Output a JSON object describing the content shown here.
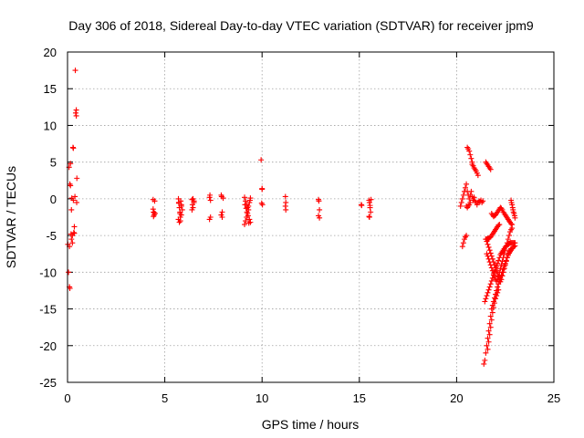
{
  "chart_data": {
    "type": "scatter",
    "title": "Day 306 of 2018, Sidereal Day-to-day VTEC variation (SDTVAR) for receiver jpm9",
    "xlabel": "GPS time / hours",
    "ylabel": "SDTVAR / TECUs",
    "xlim": [
      0,
      25
    ],
    "ylim": [
      -25,
      20
    ],
    "xticks": [
      0,
      5,
      10,
      15,
      20,
      25
    ],
    "yticks": [
      -25,
      -20,
      -15,
      -10,
      -5,
      0,
      5,
      10,
      15,
      20
    ],
    "grid": true,
    "marker": "+",
    "color": "#ff0000",
    "series": [
      {
        "name": "SDTVAR",
        "x": [
          0.02,
          0.05,
          0.08,
          0.1,
          0.12,
          0.15,
          0.18,
          0.2,
          0.22,
          0.25,
          0.28,
          0.3,
          0.32,
          0.35,
          0.38,
          0.4,
          0.42,
          0.45,
          0.45,
          0.47,
          0.48,
          0.1,
          0.12,
          0.15,
          0.2,
          0.25,
          0.3,
          0.35,
          4.4,
          4.42,
          4.45,
          4.48,
          4.4,
          4.45,
          4.5,
          4.42,
          5.7,
          5.72,
          5.75,
          5.78,
          5.8,
          5.82,
          5.85,
          5.9,
          5.7,
          5.75,
          5.8,
          5.85,
          5.72,
          5.78,
          5.85,
          6.4,
          6.42,
          6.45,
          6.5,
          6.4,
          6.45,
          6.5,
          7.3,
          7.32,
          7.35,
          7.3,
          7.35,
          7.9,
          7.92,
          7.95,
          7.9,
          7.95,
          8.0,
          9.1,
          9.15,
          9.2,
          9.25,
          9.3,
          9.35,
          9.4,
          9.1,
          9.15,
          9.2,
          9.25,
          9.3,
          9.35,
          9.4,
          9.12,
          9.18,
          9.22,
          9.28,
          9.32,
          9.38,
          9.95,
          10.0,
          10.0,
          9.98,
          10.02,
          11.2,
          11.22,
          11.2,
          11.22,
          12.9,
          12.92,
          12.95,
          12.9,
          12.95,
          15.1,
          15.12,
          15.5,
          15.52,
          15.55,
          15.58,
          15.5,
          15.55,
          15.6,
          15.52,
          20.2,
          20.25,
          20.3,
          20.35,
          20.4,
          20.45,
          20.5,
          20.55,
          20.6,
          20.65,
          20.7,
          20.75,
          20.8,
          20.85,
          20.9,
          20.95,
          21.0,
          21.05,
          21.1,
          21.15,
          21.2,
          21.25,
          21.3,
          21.35,
          20.3,
          20.35,
          20.4,
          20.45,
          20.5,
          20.55,
          20.6,
          20.65,
          20.7,
          20.75,
          20.8,
          20.5,
          20.55,
          20.6,
          20.65,
          20.7,
          20.8,
          20.85,
          20.9,
          20.95,
          21.0,
          21.05,
          21.1,
          21.5,
          21.55,
          21.6,
          21.65,
          21.7,
          21.75,
          21.8,
          21.85,
          21.9,
          21.95,
          22.0,
          22.05,
          22.1,
          22.15,
          22.2,
          22.25,
          22.3,
          22.35,
          22.4,
          22.45,
          22.5,
          22.55,
          22.6,
          22.65,
          22.7,
          22.75,
          22.8,
          22.85,
          21.55,
          21.6,
          21.65,
          21.7,
          21.75,
          21.8,
          21.85,
          21.9,
          21.95,
          22.0,
          22.05,
          22.1,
          22.15,
          22.2,
          22.25,
          22.3,
          22.35,
          22.4,
          22.45,
          22.5,
          22.55,
          22.6,
          22.65,
          22.7,
          22.75,
          22.8,
          22.85,
          21.5,
          21.55,
          21.6,
          21.65,
          21.7,
          21.75,
          21.8,
          21.85,
          21.9,
          21.95,
          22.0,
          22.05,
          22.1,
          22.15,
          22.2,
          22.25,
          22.3,
          22.35,
          22.4,
          22.45,
          22.5,
          22.55,
          22.6,
          22.65,
          22.7,
          22.75,
          22.8,
          21.45,
          21.5,
          21.55,
          21.6,
          21.65,
          21.7,
          21.75,
          21.8,
          21.85,
          21.9,
          21.95,
          22.0,
          22.05,
          22.1,
          22.15,
          22.2,
          22.25,
          22.3,
          22.35,
          22.4,
          22.45,
          22.5,
          22.55,
          22.6,
          22.65,
          22.7,
          22.75,
          22.8,
          22.85,
          22.9,
          22.95,
          23.0,
          21.5,
          21.55,
          21.6,
          21.65,
          21.7,
          21.75,
          21.8,
          21.85,
          21.9,
          21.95,
          22.0,
          22.05,
          22.1,
          22.15,
          22.2,
          21.4,
          21.45,
          21.5,
          21.55,
          21.6,
          21.65,
          21.7,
          21.75,
          21.8,
          21.85,
          21.9,
          21.95,
          22.0,
          22.05,
          22.1,
          22.15,
          22.2,
          22.25,
          22.3,
          22.35,
          22.4,
          22.45,
          22.5,
          22.55,
          22.6,
          22.65,
          22.7,
          22.75,
          22.8,
          22.85,
          22.9,
          22.95,
          23.0,
          21.6,
          21.65,
          21.7,
          21.75,
          21.8,
          21.85,
          21.9,
          21.95,
          22.0,
          22.05,
          22.1,
          22.15,
          22.8,
          22.85,
          22.9,
          22.95,
          23.0,
          22.82,
          22.88,
          22.92,
          22.98
        ],
        "y": [
          -6.2,
          -10.0,
          4.3,
          -12.0,
          -12.2,
          1.8,
          -4.8,
          -5.5,
          0.1,
          -6.0,
          7.0,
          6.9,
          -4.6,
          -3.8,
          0.3,
          17.5,
          11.7,
          11.3,
          12.1,
          -0.5,
          2.8,
          -6.5,
          2.0,
          4.8,
          -1.5,
          -5.0,
          -0.2,
          -4.7,
          -0.1,
          -1.8,
          -2.2,
          -0.3,
          -1.4,
          -1.9,
          -2.0,
          -2.4,
          0.0,
          -0.5,
          -1.2,
          -2.0,
          -3.0,
          -0.3,
          -0.8,
          -1.5,
          -2.8,
          -3.2,
          -2.5,
          -1.0,
          -0.6,
          -1.8,
          -2.2,
          -0.1,
          -0.8,
          -1.2,
          -0.3,
          -1.5,
          0.0,
          -0.5,
          0.2,
          0.5,
          -0.2,
          -2.8,
          -2.5,
          0.5,
          0.3,
          -1.8,
          -2.2,
          -2.5,
          0.1,
          0.2,
          -0.3,
          -0.8,
          -1.2,
          -1.5,
          -2.8,
          -3.2,
          -3.5,
          -3.0,
          -2.5,
          -2.0,
          -1.0,
          -0.5,
          0.1,
          -0.8,
          -1.3,
          -1.8,
          -2.3,
          -3.3,
          -0.2,
          5.3,
          1.3,
          1.4,
          -0.6,
          -0.8,
          0.3,
          -0.5,
          -1.0,
          -1.5,
          -0.1,
          -0.3,
          -1.5,
          -2.3,
          -2.6,
          -0.8,
          -0.9,
          -0.2,
          -0.5,
          -1.2,
          -1.8,
          -2.4,
          -0.9,
          -0.1,
          -2.5,
          -1.0,
          -0.5,
          0.0,
          0.5,
          1.0,
          1.5,
          2.0,
          1.0,
          0.5,
          0.0,
          0.5,
          1.0,
          0.3,
          -0.2,
          0.2,
          -0.3,
          -0.5,
          -0.8,
          -0.5,
          -0.3,
          -0.4,
          -0.2,
          -0.5,
          -0.3,
          -6.5,
          -6.0,
          -5.5,
          -5.2,
          -5.0,
          7.0,
          6.8,
          6.5,
          6.0,
          5.5,
          5.0,
          -1.0,
          -1.2,
          -1.0,
          -0.8,
          -0.5,
          4.7,
          4.5,
          4.2,
          4.0,
          3.8,
          3.5,
          3.2,
          5.0,
          4.8,
          4.6,
          4.4,
          4.2,
          4.0,
          -2.0,
          -2.2,
          -2.4,
          -2.3,
          -2.2,
          -2.0,
          -1.8,
          -1.6,
          -1.4,
          -1.2,
          -1.3,
          -1.5,
          -1.8,
          -2.0,
          -2.2,
          -2.4,
          -2.6,
          -2.8,
          -3.0,
          -3.2,
          -3.4,
          -3.5,
          -7.5,
          -7.8,
          -8.2,
          -8.6,
          -9.0,
          -9.4,
          -9.8,
          -10.2,
          -10.6,
          -11.0,
          -11.2,
          -11.0,
          -10.5,
          -10.0,
          -9.5,
          -9.0,
          -8.5,
          -8.0,
          -7.5,
          -7.0,
          -6.5,
          -6.0,
          -5.5,
          -5.0,
          -4.5,
          -4.2,
          -4.0,
          -5.5,
          -5.8,
          -6.2,
          -6.6,
          -7.0,
          -7.4,
          -7.8,
          -8.2,
          -8.6,
          -9.0,
          -9.4,
          -9.8,
          -10.2,
          -10.6,
          -11.0,
          -11.3,
          -11.0,
          -10.5,
          -10.0,
          -9.5,
          -9.0,
          -8.5,
          -8.0,
          -7.5,
          -7.2,
          -7.0,
          -6.8,
          -14.0,
          -13.6,
          -13.2,
          -12.8,
          -12.4,
          -12.0,
          -11.6,
          -11.2,
          -10.8,
          -10.4,
          -10.0,
          -9.6,
          -9.2,
          -8.8,
          -8.4,
          -8.0,
          -7.6,
          -7.4,
          -7.2,
          -7.0,
          -6.8,
          -6.6,
          -6.4,
          -6.3,
          -6.2,
          -6.1,
          -6.0,
          -6.0,
          -6.0,
          -6.0,
          -6.0,
          -6.0,
          -5.5,
          -5.5,
          -5.4,
          -5.4,
          -5.3,
          -5.2,
          -5.0,
          -4.8,
          -4.6,
          -4.4,
          -4.2,
          -4.0,
          -3.8,
          -3.6,
          -3.5,
          -22.5,
          -22.0,
          -21.0,
          -20.0,
          -19.0,
          -18.0,
          -17.0,
          -16.0,
          -15.0,
          -14.5,
          -14.0,
          -13.5,
          -13.0,
          -12.5,
          -12.0,
          -11.6,
          -11.2,
          -10.8,
          -10.4,
          -10.0,
          -9.6,
          -9.2,
          -8.8,
          -8.4,
          -8.0,
          -7.7,
          -7.4,
          -7.2,
          -7.0,
          -6.8,
          -6.6,
          -6.5,
          -6.4,
          -20.5,
          -19.5,
          -18.5,
          -17.5,
          -16.5,
          -15.5,
          -14.8,
          -14.2,
          -13.6,
          -13.2,
          -12.8,
          -12.4,
          -0.2,
          -0.8,
          -1.5,
          -2.0,
          -2.6,
          -0.5,
          -1.2,
          -1.8,
          -2.3
        ]
      }
    ]
  }
}
